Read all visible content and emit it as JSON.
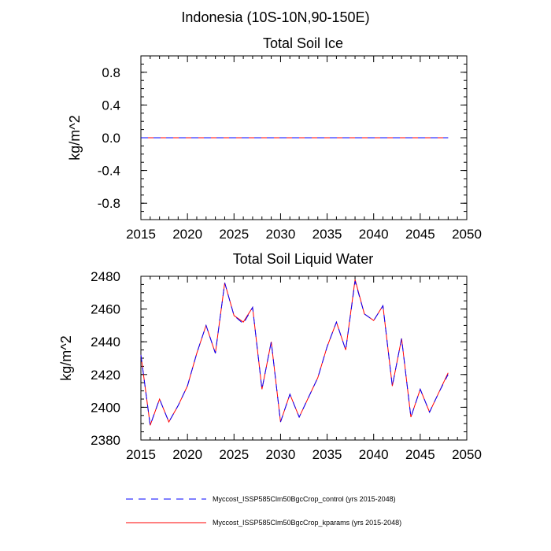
{
  "page_title": "Indonesia (10S-10N,90-150E)",
  "chart_data": [
    {
      "type": "line",
      "title": "Total Soil Ice",
      "xlabel": "",
      "ylabel": "kg/m^2",
      "xlim": [
        2015,
        2050
      ],
      "ylim": [
        -1.0,
        1.0
      ],
      "xticks": [
        2015,
        2020,
        2025,
        2030,
        2035,
        2040,
        2045,
        2050
      ],
      "xtick_labels": [
        "2015",
        "2020",
        "2025",
        "2030",
        "2035",
        "2040",
        "2045",
        "2050"
      ],
      "yticks": [
        -0.8,
        -0.4,
        0.0,
        0.4,
        0.8
      ],
      "ytick_labels": [
        "-0.8",
        "-0.4",
        "0.0",
        "0.4",
        "0.8"
      ],
      "x": [
        2015,
        2016,
        2017,
        2018,
        2019,
        2020,
        2021,
        2022,
        2023,
        2024,
        2025,
        2026,
        2027,
        2028,
        2029,
        2030,
        2031,
        2032,
        2033,
        2034,
        2035,
        2036,
        2037,
        2038,
        2039,
        2040,
        2041,
        2042,
        2043,
        2044,
        2045,
        2046,
        2047,
        2048
      ],
      "series": [
        {
          "name": "Myccost_ISSP585Clm50BgcCrop_control (yrs 2015-2048)",
          "color": "#0000ff",
          "dash": "dashed",
          "values": [
            0,
            0,
            0,
            0,
            0,
            0,
            0,
            0,
            0,
            0,
            0,
            0,
            0,
            0,
            0,
            0,
            0,
            0,
            0,
            0,
            0,
            0,
            0,
            0,
            0,
            0,
            0,
            0,
            0,
            0,
            0,
            0,
            0,
            0
          ]
        },
        {
          "name": "Myccost_ISSP585Clm50BgcCrop_kparams (yrs 2015-2048)",
          "color": "#ff0000",
          "dash": "solid",
          "values": [
            0,
            0,
            0,
            0,
            0,
            0,
            0,
            0,
            0,
            0,
            0,
            0,
            0,
            0,
            0,
            0,
            0,
            0,
            0,
            0,
            0,
            0,
            0,
            0,
            0,
            0,
            0,
            0,
            0,
            0,
            0,
            0,
            0,
            0
          ]
        }
      ]
    },
    {
      "type": "line",
      "title": "Total Soil Liquid Water",
      "xlabel": "",
      "ylabel": "kg/m^2",
      "xlim": [
        2015,
        2050
      ],
      "ylim": [
        2380,
        2480
      ],
      "xticks": [
        2015,
        2020,
        2025,
        2030,
        2035,
        2040,
        2045,
        2050
      ],
      "xtick_labels": [
        "2015",
        "2020",
        "2025",
        "2030",
        "2035",
        "2040",
        "2045",
        "2050"
      ],
      "yticks": [
        2380,
        2400,
        2420,
        2440,
        2460,
        2480
      ],
      "ytick_labels": [
        "2380",
        "2400",
        "2420",
        "2440",
        "2460",
        "2480"
      ],
      "x": [
        2015,
        2016,
        2017,
        2018,
        2019,
        2020,
        2021,
        2022,
        2023,
        2024,
        2025,
        2026,
        2027,
        2028,
        2029,
        2030,
        2031,
        2032,
        2033,
        2034,
        2035,
        2036,
        2037,
        2038,
        2039,
        2040,
        2041,
        2042,
        2043,
        2044,
        2045,
        2046,
        2047,
        2048
      ],
      "series": [
        {
          "name": "Myccost_ISSP585Clm50BgcCrop_control (yrs 2015-2048)",
          "color": "#0000ff",
          "dash": "dashed",
          "values": [
            2432,
            2389,
            2405,
            2391,
            2401,
            2413,
            2433,
            2450,
            2433,
            2476,
            2456,
            2451,
            2461,
            2411,
            2440,
            2391,
            2408,
            2394,
            2406,
            2418,
            2437,
            2452,
            2435,
            2477,
            2457,
            2453,
            2462,
            2413,
            2442,
            2394,
            2411,
            2397,
            2409,
            2420
          ]
        },
        {
          "name": "Myccost_ISSP585Clm50BgcCrop_kparams (yrs 2015-2048)",
          "color": "#ff0000",
          "dash": "solid",
          "values": [
            2432,
            2389,
            2405,
            2391,
            2401,
            2413,
            2433,
            2450,
            2433,
            2476,
            2456,
            2452,
            2461,
            2411,
            2440,
            2391,
            2408,
            2394,
            2406,
            2418,
            2437,
            2452,
            2435,
            2478,
            2457,
            2453,
            2462,
            2413,
            2442,
            2394,
            2411,
            2397,
            2409,
            2421
          ]
        }
      ]
    }
  ],
  "legend": [
    {
      "label": "Myccost_ISSP585Clm50BgcCrop_control (yrs 2015-2048)",
      "color": "#0000ff",
      "dash": "dashed"
    },
    {
      "label": "Myccost_ISSP585Clm50BgcCrop_kparams (yrs 2015-2048)",
      "color": "#ff0000",
      "dash": "solid"
    }
  ]
}
